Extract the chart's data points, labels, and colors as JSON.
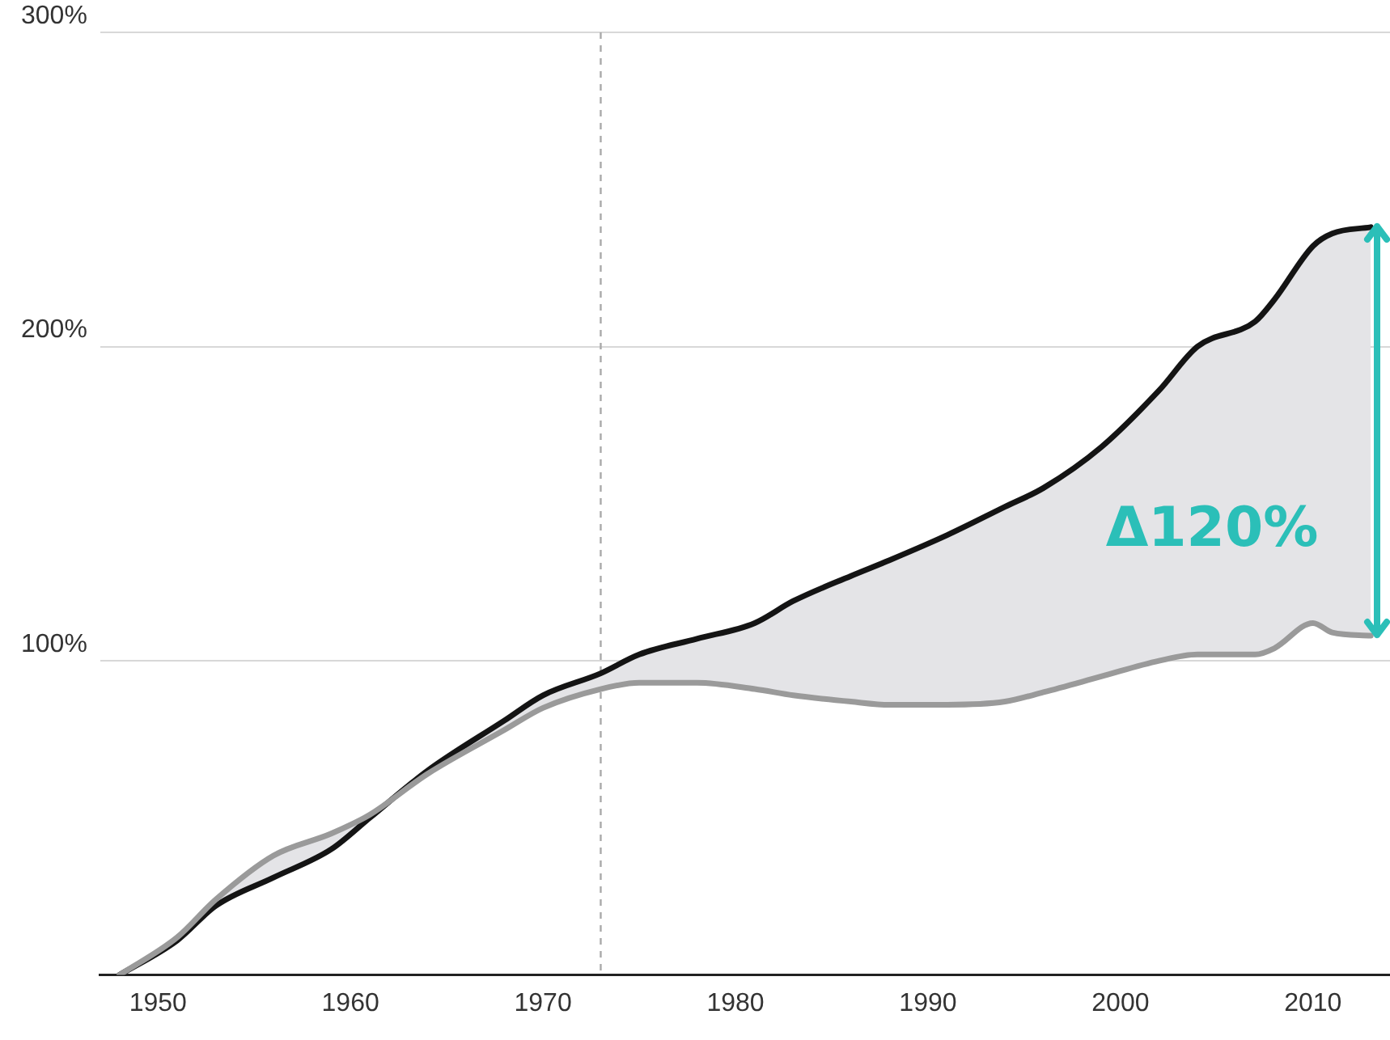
{
  "chart_data": {
    "type": "line",
    "x": [
      1948,
      1951,
      1953,
      1956,
      1959,
      1961,
      1964,
      1968,
      1970,
      1973,
      1975,
      1978,
      1981,
      1983,
      1986,
      1988,
      1991,
      1994,
      1996,
      1999,
      2002,
      2004,
      2007,
      2008,
      2010,
      2011,
      2013
    ],
    "series": [
      {
        "color": "#9a9a9a",
        "values": [
          0,
          12,
          24,
          38,
          45,
          51,
          64,
          78,
          85,
          91,
          93,
          93,
          91,
          89,
          87,
          86,
          86,
          87,
          90,
          95,
          100,
          102,
          102,
          104,
          112,
          109,
          108
        ]
      },
      {
        "color": "#141414",
        "values": [
          0,
          11,
          22,
          31,
          40,
          50,
          65,
          81,
          89,
          96,
          102,
          107,
          112,
          119,
          127,
          132,
          140,
          149,
          155,
          168,
          186,
          200,
          208,
          215,
          232,
          236,
          238
        ]
      }
    ],
    "xlim": [
      1947,
      2014
    ],
    "xticks": [
      1950,
      1960,
      1970,
      1980,
      1990,
      2000,
      2010
    ],
    "ylim": [
      0,
      300
    ],
    "yticks": [
      {
        "value": 0,
        "label": null
      },
      {
        "value": 100,
        "label": "100%"
      },
      {
        "value": 200,
        "label": "200%"
      },
      {
        "value": 300,
        "label": "300%"
      }
    ],
    "grid": "y",
    "marker": "none",
    "line_style": "solid",
    "ref_lines": [
      {
        "axis": "x",
        "value": 1973,
        "color": "#aaaaaa",
        "line_style": "dashed"
      }
    ],
    "annotations": [
      "Δ120%"
    ]
  }
}
